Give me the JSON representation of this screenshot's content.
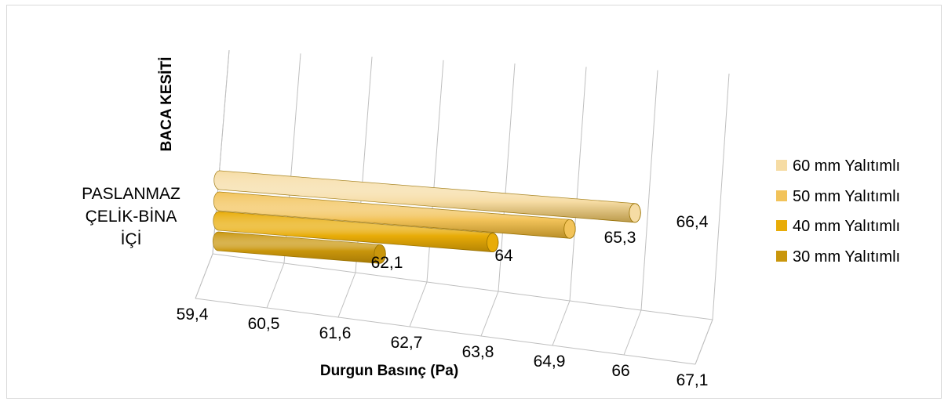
{
  "chart_data": {
    "type": "bar",
    "orientation": "horizontal",
    "style": "3d-cylinder",
    "categories": [
      "PASLANMAZ ÇELİK-BİNA İÇİ"
    ],
    "category_lines": [
      "PASLANMAZ",
      "ÇELİK-BİNA",
      "İÇİ"
    ],
    "series": [
      {
        "name": "30 mm Yalıtımlı",
        "values": [
          62.1
        ],
        "label": "62,1",
        "color": "#c9960c"
      },
      {
        "name": "40 mm Yalıtımlı",
        "values": [
          64.0
        ],
        "label": "64",
        "color": "#e8ac08"
      },
      {
        "name": "50 mm Yalıtımlı",
        "values": [
          65.3
        ],
        "label": "65,3",
        "color": "#f2c35a"
      },
      {
        "name": "60 mm Yalıtımlı",
        "values": [
          66.4
        ],
        "label": "66,4",
        "color": "#f6dca4"
      }
    ],
    "legend_order": [
      "60 mm Yalıtımlı",
      "50 mm Yalıtımlı",
      "40 mm Yalıtımlı",
      "30 mm Yalıtımlı"
    ],
    "legend_position": "right",
    "xlabel": "Durgun Basınç (Pa)",
    "ylabel": "BACA KESİTİ",
    "xlim": [
      59.4,
      67.1
    ],
    "xticks": [
      59.4,
      60.5,
      61.6,
      62.7,
      63.8,
      64.9,
      66,
      67.1
    ],
    "xtick_labels": [
      "59,4",
      "60,5",
      "61,6",
      "62,7",
      "63,8",
      "64,9",
      "66",
      "67,1"
    ],
    "grid": true
  }
}
